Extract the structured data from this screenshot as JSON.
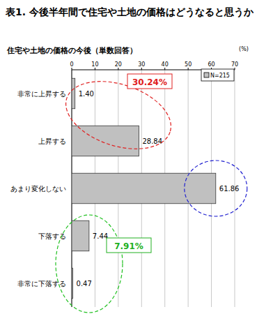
{
  "chart_data": {
    "type": "bar",
    "orientation": "horizontal",
    "title": "表1. 今後半年間で住宅や土地の価格はどうなると思うか",
    "subtitle": "住宅や土地の価格の今後（単数回答）",
    "x_label": "(%)",
    "categories": [
      "非常に上昇する",
      "上昇する",
      "あまり変化しない",
      "下落する",
      "非常に下落する"
    ],
    "series": [
      {
        "name": "N=215",
        "color": "#c0c0c0",
        "values": [
          1.4,
          28.84,
          61.86,
          7.44,
          0.47
        ],
        "value_labels": [
          "1.40",
          "28.84",
          "61.86",
          "7.44",
          "0.47"
        ]
      }
    ],
    "xlim": [
      0,
      70
    ],
    "xticks": [
      0,
      10,
      20,
      30,
      40,
      50,
      60,
      70
    ],
    "grid": true,
    "data_labels": true,
    "legend": "top-right",
    "annotations": [
      "30.24%",
      "7.91%"
    ]
  }
}
